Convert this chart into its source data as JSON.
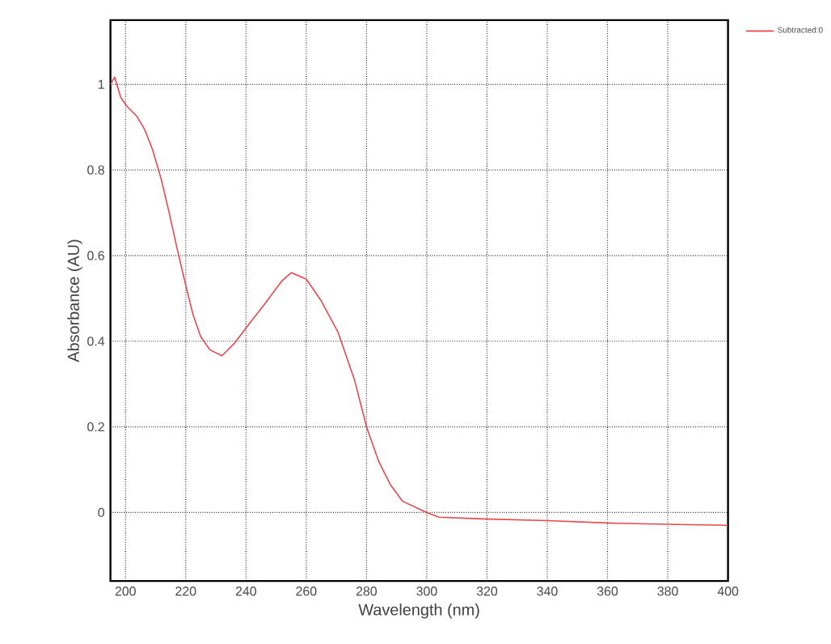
{
  "chart_data": {
    "type": "line",
    "xlabel": "Wavelength (nm)",
    "ylabel": "Absorbance (AU)",
    "x": [
      195,
      196.4,
      198.4,
      200.3,
      203.7,
      206.4,
      209,
      211.8,
      214.5,
      217,
      219.8,
      222.5,
      225,
      228,
      232,
      236,
      241,
      246.5,
      251.8,
      255,
      260,
      265,
      270.6,
      276,
      280,
      284,
      288,
      292,
      297.5,
      300,
      304,
      318.6,
      340,
      361.5,
      383,
      400
    ],
    "series": [
      {
        "name": "Subtracted:0",
        "color": "#e8474c",
        "values": [
          1.0,
          1.017,
          0.97,
          0.95,
          0.926,
          0.894,
          0.847,
          0.78,
          0.7,
          0.62,
          0.536,
          0.46,
          0.41,
          0.38,
          0.366,
          0.394,
          0.44,
          0.49,
          0.54,
          0.56,
          0.545,
          0.494,
          0.42,
          0.31,
          0.2,
          0.12,
          0.064,
          0.026,
          0.008,
          0,
          -0.011,
          -0.015,
          -0.019,
          -0.025,
          -0.028,
          -0.03
        ]
      }
    ],
    "xlim": [
      195,
      400
    ],
    "ylim": [
      -0.16,
      1.15
    ],
    "xticks": [
      200,
      220,
      240,
      260,
      280,
      300,
      320,
      340,
      360,
      380,
      400
    ],
    "yticks": [
      0,
      0.2,
      0.4,
      0.6,
      0.8,
      1
    ],
    "grid": true,
    "legend": "top right",
    "line_style": "solid"
  }
}
